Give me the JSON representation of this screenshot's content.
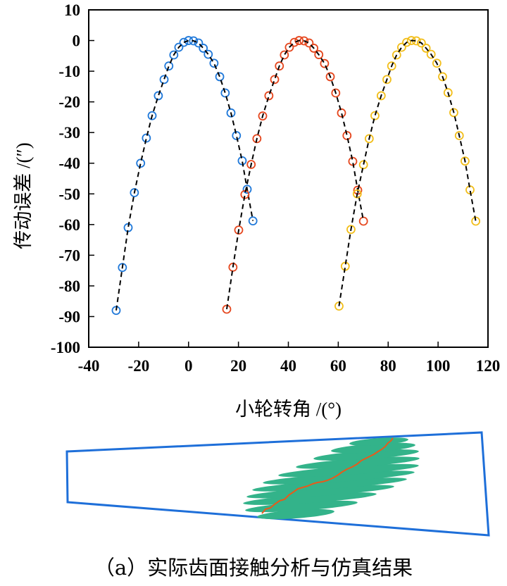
{
  "chart_data": {
    "type": "scatter",
    "xlabel": "小轮转角 /(°)",
    "ylabel": "传动误差 /(″)",
    "xlim": [
      -40,
      120
    ],
    "ylim": [
      -100,
      10
    ],
    "xticks": [
      -40,
      -20,
      0,
      20,
      40,
      60,
      80,
      100,
      120
    ],
    "yticks": [
      10,
      0,
      -10,
      -20,
      -30,
      -40,
      -50,
      -60,
      -70,
      -80,
      -90,
      -100
    ],
    "grid": false,
    "legend": "none",
    "line_style": "dashed",
    "line_color": "#000000",
    "series": [
      {
        "color": "#1f78d9",
        "x": [
          -29.0,
          -26.5,
          -24.2,
          -21.7,
          -19.2,
          -16.9,
          -14.6,
          -12.1,
          -9.8,
          -7.9,
          -5.9,
          -3.9,
          -1.9,
          0.0,
          2.0,
          4.0,
          5.9,
          7.9,
          10.2,
          12.5,
          14.7,
          17.0,
          19.2,
          21.5,
          23.5,
          25.8
        ],
        "y": [
          -88.0,
          -74.0,
          -61.0,
          -49.6,
          -40.0,
          -31.8,
          -24.5,
          -18.0,
          -12.7,
          -8.3,
          -4.7,
          -2.2,
          -0.6,
          0.0,
          -0.1,
          -0.8,
          -2.5,
          -4.5,
          -7.4,
          -11.8,
          -17.1,
          -23.6,
          -31.0,
          -39.2,
          -48.5,
          -58.8
        ]
      },
      {
        "color": "#e5461d",
        "x": [
          15.3,
          17.8,
          20.1,
          22.6,
          25.1,
          27.4,
          29.7,
          32.2,
          34.5,
          36.4,
          38.4,
          40.4,
          42.4,
          44.3,
          46.3,
          48.3,
          50.2,
          52.2,
          54.5,
          56.8,
          59.0,
          61.3,
          63.5,
          65.8,
          67.8,
          70.1
        ],
        "y": [
          -87.6,
          -73.9,
          -61.8,
          -50.2,
          -40.4,
          -32.0,
          -24.6,
          -18.0,
          -12.7,
          -8.3,
          -4.7,
          -2.2,
          -0.6,
          0.0,
          -0.1,
          -0.8,
          -2.5,
          -4.6,
          -7.5,
          -11.8,
          -17.1,
          -23.6,
          -31.0,
          -39.4,
          -48.8,
          -58.9
        ]
      },
      {
        "color": "#f2be1a",
        "x": [
          60.3,
          62.8,
          65.1,
          67.6,
          70.1,
          72.4,
          74.7,
          77.2,
          79.5,
          81.4,
          83.4,
          85.4,
          87.4,
          89.3,
          91.3,
          93.3,
          95.2,
          97.2,
          99.5,
          101.8,
          104.0,
          106.3,
          108.5,
          110.8,
          112.8,
          115.1
        ],
        "y": [
          -86.6,
          -73.6,
          -61.6,
          -50.0,
          -40.5,
          -32.0,
          -24.5,
          -18.0,
          -12.7,
          -8.3,
          -4.7,
          -2.2,
          -0.6,
          0.0,
          -0.1,
          -0.8,
          -2.5,
          -4.5,
          -7.4,
          -11.8,
          -17.0,
          -23.5,
          -31.0,
          -39.3,
          -48.7,
          -58.9
        ]
      }
    ]
  },
  "contact_diagram": {
    "outline_color": "#1e6fd9",
    "contact_pattern_color": "#33b38a",
    "contact_path_color": "#e85a1a"
  },
  "caption": "（a）实际齿面接触分析与仿真结果"
}
